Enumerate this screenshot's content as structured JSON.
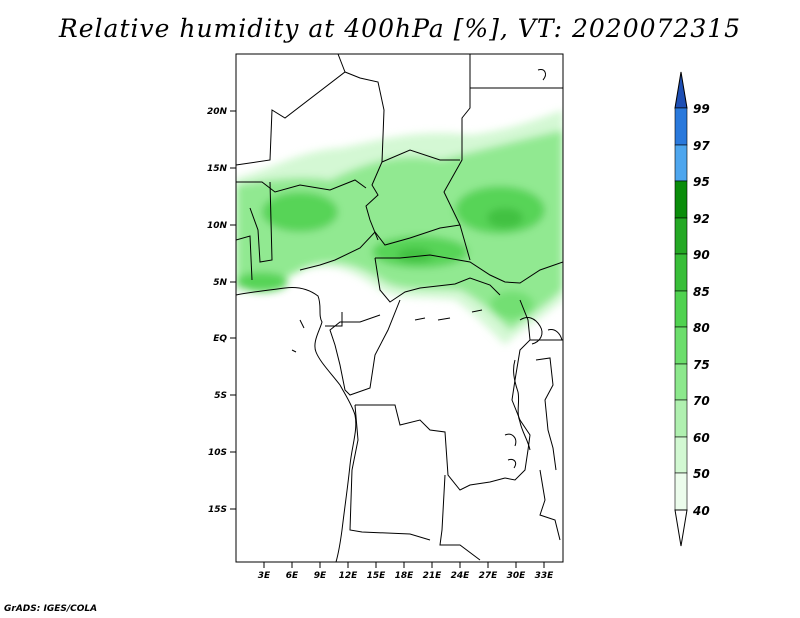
{
  "title": "Relative humidity at 400hPa [%], VT: 2020072315",
  "credit": "GrADS: IGES/COLA",
  "map": {
    "lon_range": [
      0,
      36
    ],
    "lat_range": [
      -20,
      25
    ],
    "y_tick_labels": [
      "20N",
      "15N",
      "10N",
      "5N",
      "EQ",
      "5S",
      "10S",
      "15S"
    ],
    "x_tick_labels": [
      "3E",
      "6E",
      "9E",
      "12E",
      "15E",
      "18E",
      "21E",
      "24E",
      "27E",
      "30E",
      "33E"
    ]
  },
  "colorbar": {
    "levels": [
      "99",
      "97",
      "95",
      "92",
      "90",
      "85",
      "80",
      "75",
      "70",
      "60",
      "50",
      "40"
    ],
    "colors": [
      "#1e4fb4",
      "#2a79dc",
      "#4ea6ee",
      "#0a8c0a",
      "#24a824",
      "#38be38",
      "#50d250",
      "#6cde6c",
      "#8ce88c",
      "#b0f0b0",
      "#d2f8d2",
      "#ecfcec",
      "#ffffff"
    ]
  },
  "palette": {
    "border": "#000000",
    "humidity_light": "#d2f8d2",
    "humidity_mid": "#8ce88c",
    "humidity_dark": "#38be38"
  }
}
